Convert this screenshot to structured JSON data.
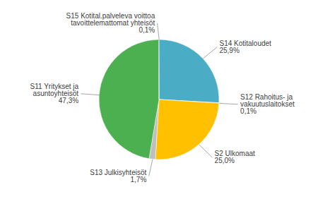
{
  "chart_data": {
    "type": "pie",
    "categories": [
      "S14 Kotitaloudet",
      "S12 Rahoitus- ja\nvakuutuslaitokset",
      "S2 Ulkomaat",
      "S13 Julkisyhteisöt",
      "S11 Yritykset ja\nasuntoyhteisöt",
      "S15 Kotital.palveleva voittoa\ntavoittelemattomat yhteisöt"
    ],
    "values": [
      25.9,
      0.1,
      25.0,
      1.7,
      47.3,
      0.1
    ],
    "value_labels": [
      "25,9%",
      "0,1%",
      "25,0%",
      "1,7%",
      "47,3%",
      "0,1%"
    ],
    "colors": [
      "#4BACC6",
      "#F79646",
      "#FFC000",
      "#BFBFBF",
      "#4CAF50",
      "#1A1A1A"
    ],
    "data_labels": true
  }
}
